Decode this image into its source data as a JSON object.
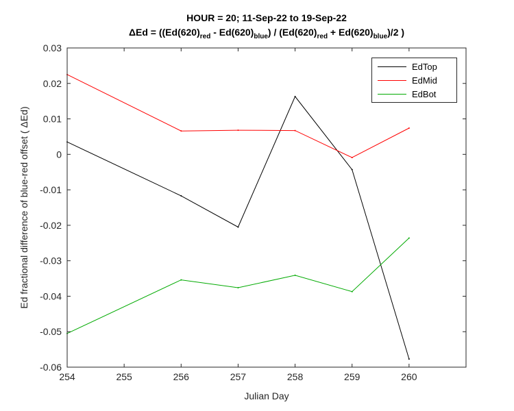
{
  "chart_data": {
    "type": "line",
    "title_line1": "HOUR = 20; 11-Sep-22 to 19-Sep-22",
    "title_line2": {
      "delta_symbol": "Δ",
      "parts": [
        "Ed = ((Ed(620)",
        "red",
        " - Ed(620)",
        "blue",
        ") / (Ed(620)",
        "red",
        " + Ed(620)",
        "blue",
        ")/2  )"
      ]
    },
    "xlabel": "Julian Day",
    "ylabel": "Ed fractional difference of blue-red offset (  ΔEd)",
    "xlim": [
      254,
      261
    ],
    "ylim": [
      -0.06,
      0.03
    ],
    "xticks": [
      254,
      255,
      256,
      257,
      258,
      259,
      260
    ],
    "xtick_labels": [
      "254",
      "255",
      "256",
      "257",
      "258",
      "259",
      "260"
    ],
    "yticks": [
      -0.06,
      -0.05,
      -0.04,
      -0.03,
      -0.02,
      -0.01,
      0,
      0.01,
      0.02,
      0.03
    ],
    "ytick_labels": [
      "-0.06",
      "-0.05",
      "-0.04",
      "-0.03",
      "-0.02",
      "-0.01",
      "0",
      "0.01",
      "0.02",
      "0.03"
    ],
    "grid": false,
    "legend_position": "top-right",
    "series": [
      {
        "name": "EdTop",
        "color": "#000000",
        "x": [
          254,
          256,
          257,
          258,
          259,
          260
        ],
        "y": [
          0.0035,
          -0.0117,
          -0.0205,
          0.0163,
          -0.0043,
          -0.0577
        ]
      },
      {
        "name": "EdMid",
        "color": "#ff0000",
        "x": [
          254,
          256,
          257,
          258,
          259,
          260
        ],
        "y": [
          0.0225,
          0.0066,
          0.0068,
          0.0067,
          -0.0009,
          0.0074
        ]
      },
      {
        "name": "EdBot",
        "color": "#00aa00",
        "x": [
          254,
          256,
          257,
          258,
          259,
          260
        ],
        "y": [
          -0.0505,
          -0.0354,
          -0.0376,
          -0.0341,
          -0.0387,
          -0.0236
        ]
      }
    ]
  }
}
